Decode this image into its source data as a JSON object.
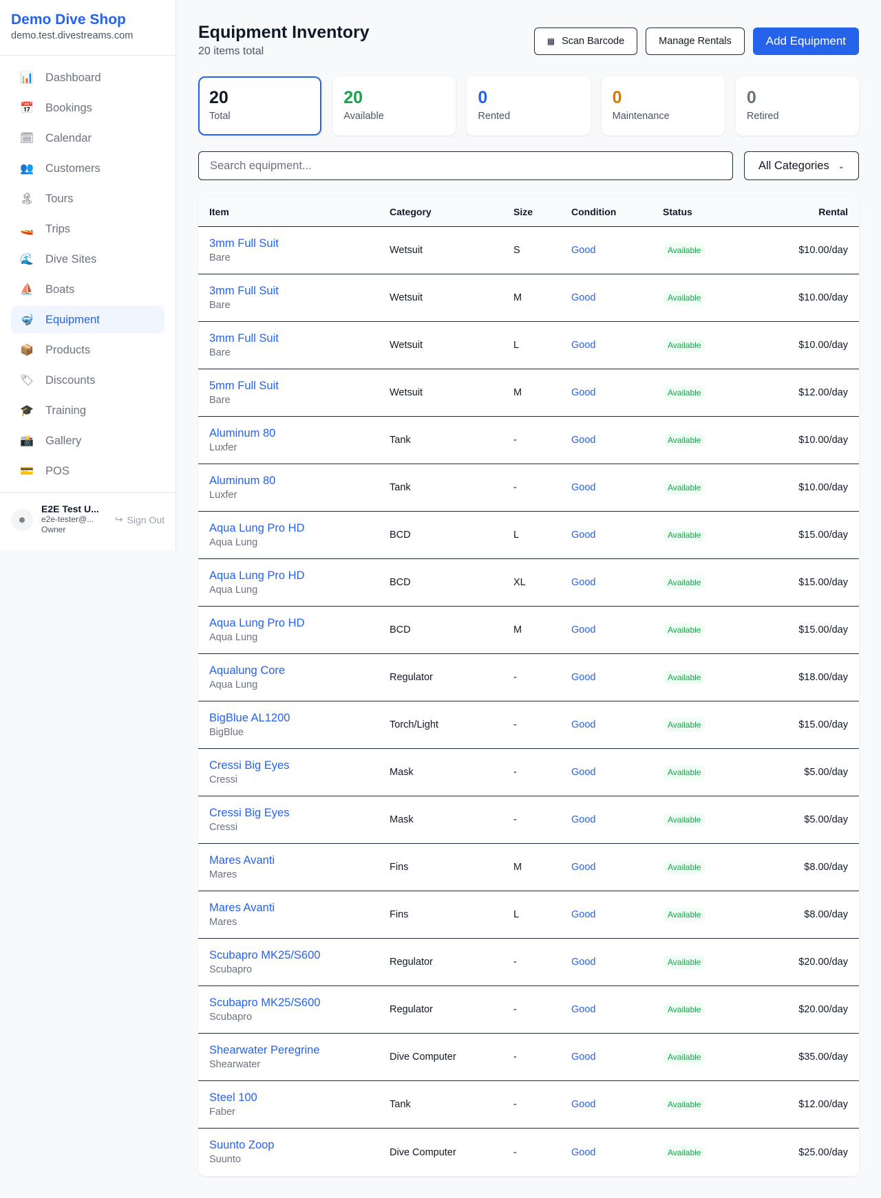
{
  "sidebar": {
    "brand": "Demo Dive Shop",
    "domain": "demo.test.divestreams.com",
    "items": [
      {
        "label": "Dashboard",
        "icon": "📊"
      },
      {
        "label": "Bookings",
        "icon": "📅"
      },
      {
        "label": "Calendar",
        "icon": "🗓"
      },
      {
        "label": "Customers",
        "icon": "👥"
      },
      {
        "label": "Tours",
        "icon": "🏝"
      },
      {
        "label": "Trips",
        "icon": "🚤"
      },
      {
        "label": "Dive Sites",
        "icon": "🌊"
      },
      {
        "label": "Boats",
        "icon": "⛵"
      },
      {
        "label": "Equipment",
        "icon": "🤿",
        "active": true
      },
      {
        "label": "Products",
        "icon": "📦"
      },
      {
        "label": "Discounts",
        "icon": "🏷"
      },
      {
        "label": "Training",
        "icon": "🎓"
      },
      {
        "label": "Gallery",
        "icon": "📸"
      },
      {
        "label": "POS",
        "icon": "💳"
      }
    ],
    "user": {
      "name": "E2E Test U...",
      "email": "e2e-tester@...",
      "role": "Owner",
      "sign_out": "Sign Out"
    }
  },
  "header": {
    "title": "Equipment Inventory",
    "subtitle": "20 items total",
    "scan": "Scan Barcode",
    "manage": "Manage Rentals",
    "add": "Add Equipment"
  },
  "stats": [
    {
      "value": "20",
      "label": "Total",
      "color": "#111827"
    },
    {
      "value": "20",
      "label": "Available",
      "color": "#16a34a"
    },
    {
      "value": "0",
      "label": "Rented",
      "color": "#2563eb"
    },
    {
      "value": "0",
      "label": "Maintenance",
      "color": "#d97706"
    },
    {
      "value": "0",
      "label": "Retired",
      "color": "#6b7280"
    }
  ],
  "filters": {
    "search_placeholder": "Search equipment...",
    "category": "All Categories"
  },
  "table": {
    "headers": {
      "item": "Item",
      "category": "Category",
      "size": "Size",
      "condition": "Condition",
      "status": "Status",
      "rental": "Rental"
    },
    "rows": [
      {
        "name": "3mm Full Suit",
        "brand": "Bare",
        "category": "Wetsuit",
        "size": "S",
        "condition": "Good",
        "status": "Available",
        "rental": "$10.00/day"
      },
      {
        "name": "3mm Full Suit",
        "brand": "Bare",
        "category": "Wetsuit",
        "size": "M",
        "condition": "Good",
        "status": "Available",
        "rental": "$10.00/day"
      },
      {
        "name": "3mm Full Suit",
        "brand": "Bare",
        "category": "Wetsuit",
        "size": "L",
        "condition": "Good",
        "status": "Available",
        "rental": "$10.00/day"
      },
      {
        "name": "5mm Full Suit",
        "brand": "Bare",
        "category": "Wetsuit",
        "size": "M",
        "condition": "Good",
        "status": "Available",
        "rental": "$12.00/day"
      },
      {
        "name": "Aluminum 80",
        "brand": "Luxfer",
        "category": "Tank",
        "size": "-",
        "condition": "Good",
        "status": "Available",
        "rental": "$10.00/day"
      },
      {
        "name": "Aluminum 80",
        "brand": "Luxfer",
        "category": "Tank",
        "size": "-",
        "condition": "Good",
        "status": "Available",
        "rental": "$10.00/day"
      },
      {
        "name": "Aqua Lung Pro HD",
        "brand": "Aqua Lung",
        "category": "BCD",
        "size": "L",
        "condition": "Good",
        "status": "Available",
        "rental": "$15.00/day"
      },
      {
        "name": "Aqua Lung Pro HD",
        "brand": "Aqua Lung",
        "category": "BCD",
        "size": "XL",
        "condition": "Good",
        "status": "Available",
        "rental": "$15.00/day"
      },
      {
        "name": "Aqua Lung Pro HD",
        "brand": "Aqua Lung",
        "category": "BCD",
        "size": "M",
        "condition": "Good",
        "status": "Available",
        "rental": "$15.00/day"
      },
      {
        "name": "Aqualung Core",
        "brand": "Aqua Lung",
        "category": "Regulator",
        "size": "-",
        "condition": "Good",
        "status": "Available",
        "rental": "$18.00/day"
      },
      {
        "name": "BigBlue AL1200",
        "brand": "BigBlue",
        "category": "Torch/Light",
        "size": "-",
        "condition": "Good",
        "status": "Available",
        "rental": "$15.00/day"
      },
      {
        "name": "Cressi Big Eyes",
        "brand": "Cressi",
        "category": "Mask",
        "size": "-",
        "condition": "Good",
        "status": "Available",
        "rental": "$5.00/day"
      },
      {
        "name": "Cressi Big Eyes",
        "brand": "Cressi",
        "category": "Mask",
        "size": "-",
        "condition": "Good",
        "status": "Available",
        "rental": "$5.00/day"
      },
      {
        "name": "Mares Avanti",
        "brand": "Mares",
        "category": "Fins",
        "size": "M",
        "condition": "Good",
        "status": "Available",
        "rental": "$8.00/day"
      },
      {
        "name": "Mares Avanti",
        "brand": "Mares",
        "category": "Fins",
        "size": "L",
        "condition": "Good",
        "status": "Available",
        "rental": "$8.00/day"
      },
      {
        "name": "Scubapro MK25/S600",
        "brand": "Scubapro",
        "category": "Regulator",
        "size": "-",
        "condition": "Good",
        "status": "Available",
        "rental": "$20.00/day"
      },
      {
        "name": "Scubapro MK25/S600",
        "brand": "Scubapro",
        "category": "Regulator",
        "size": "-",
        "condition": "Good",
        "status": "Available",
        "rental": "$20.00/day"
      },
      {
        "name": "Shearwater Peregrine",
        "brand": "Shearwater",
        "category": "Dive Computer",
        "size": "-",
        "condition": "Good",
        "status": "Available",
        "rental": "$35.00/day"
      },
      {
        "name": "Steel 100",
        "brand": "Faber",
        "category": "Tank",
        "size": "-",
        "condition": "Good",
        "status": "Available",
        "rental": "$12.00/day"
      },
      {
        "name": "Suunto Zoop",
        "brand": "Suunto",
        "category": "Dive Computer",
        "size": "-",
        "condition": "Good",
        "status": "Available",
        "rental": "$25.00/day"
      }
    ]
  }
}
